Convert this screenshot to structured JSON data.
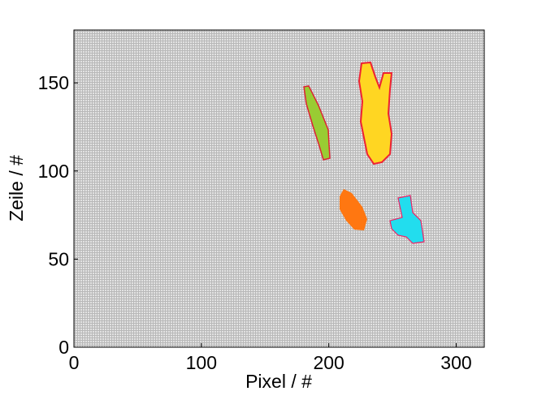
{
  "chart_data": {
    "type": "image",
    "xlabel": "Pixel / #",
    "ylabel": "Zeile / #",
    "xlim": [
      0,
      322
    ],
    "ylim": [
      0,
      180
    ],
    "xticks": [
      0,
      100,
      200,
      300
    ],
    "yticks": [
      0,
      50,
      100,
      150
    ]
  }
}
